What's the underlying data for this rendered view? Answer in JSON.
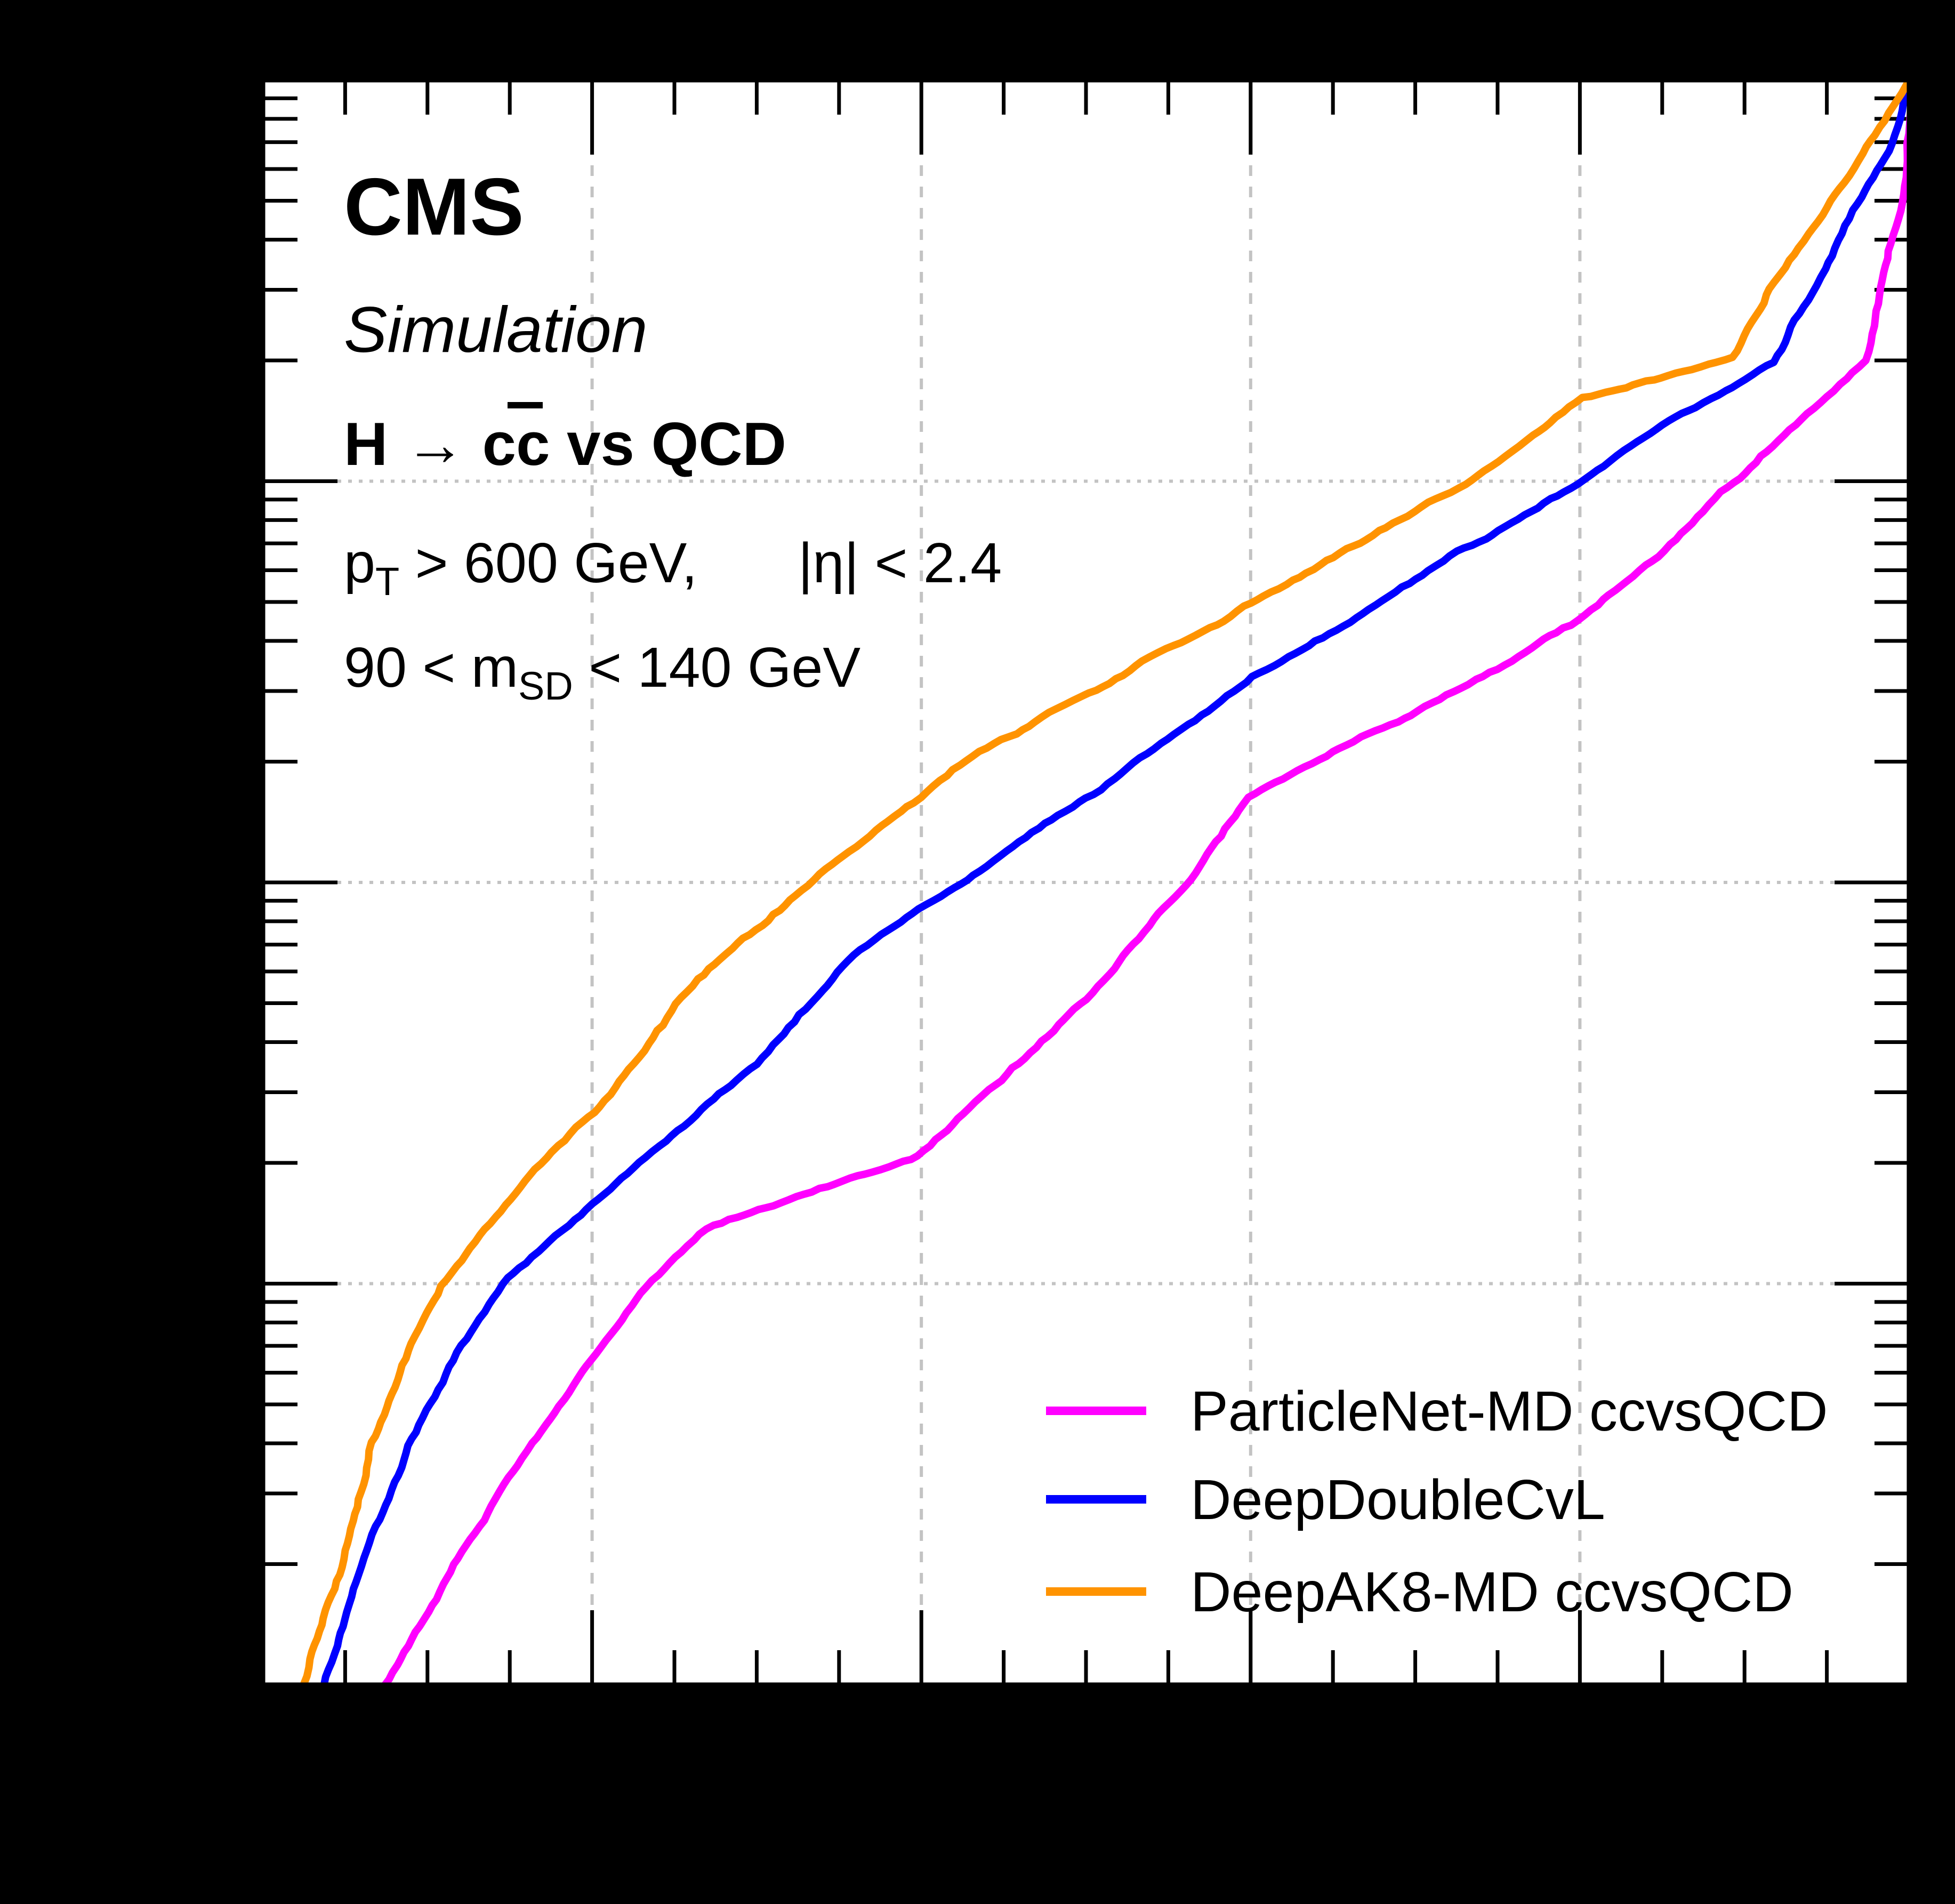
{
  "header": {
    "experiment": "CMS",
    "label": "Simulation",
    "process": {
      "h": "H ",
      "arrow": "→",
      "c": " c",
      "anti_c": "c",
      "rest": " vs QCD"
    },
    "cuts": {
      "pt_p": "p",
      "pt_sub": "T",
      "pt_rest": " > 600 GeV,",
      "eta": "|η| < 2.4",
      "msd_before": "90 < m",
      "msd_sub": "SD",
      "msd_after": " < 140 GeV"
    }
  },
  "legend": {
    "position": "bottom-right",
    "items": [
      {
        "label": "ParticleNet-MD ccvsQCD",
        "color": "#ff00ff"
      },
      {
        "label": "DeepDoubleCvL",
        "color": "#0000ff"
      },
      {
        "label": "DeepAK8-MD ccvsQCD",
        "color": "#ff9300"
      }
    ]
  },
  "chart_data": {
    "type": "line",
    "title": "CMS Simulation",
    "subtitle": "H → cc̄ vs QCD",
    "grid": true,
    "x_axis": {
      "scale": "linear",
      "min": 0,
      "max": 1,
      "major_ticks": [
        0.2,
        0.4,
        0.6,
        0.8
      ],
      "minor_step": 0.05,
      "gridlines": [
        0.2,
        0.4,
        0.6,
        0.8
      ]
    },
    "y_axis": {
      "scale": "log",
      "min": 0.0001,
      "max": 1,
      "major_ticks": [
        0.1,
        0.01,
        0.001
      ],
      "gridlines": [
        0.1,
        0.01,
        0.001
      ]
    },
    "series": [
      {
        "id": "particlenet-md",
        "name": "ParticleNet-MD ccvsQCD",
        "color": "#ff00ff",
        "points": [
          [
            0.074,
            0.0001
          ],
          [
            0.118,
            0.0002
          ],
          [
            0.164,
            0.0004
          ],
          [
            0.2,
            0.00065
          ],
          [
            0.238,
            0.001
          ],
          [
            0.271,
            0.00135
          ],
          [
            0.34,
            0.00175
          ],
          [
            0.4,
            0.0021
          ],
          [
            0.5,
            0.0052
          ],
          [
            0.565,
            0.01
          ],
          [
            0.6,
            0.016
          ],
          [
            0.7,
            0.027
          ],
          [
            0.8,
            0.045
          ],
          [
            0.85,
            0.066
          ],
          [
            0.894,
            0.1
          ],
          [
            0.94,
            0.15
          ],
          [
            0.974,
            0.2
          ],
          [
            0.985,
            0.3
          ],
          [
            0.995,
            0.5
          ],
          [
            1.0,
            1.0
          ]
        ]
      },
      {
        "id": "deepdoublecvl",
        "name": "DeepDoubleCvL",
        "color": "#0000ff",
        "points": [
          [
            0.038,
            0.0001
          ],
          [
            0.061,
            0.0002
          ],
          [
            0.09,
            0.0004
          ],
          [
            0.12,
            0.00068
          ],
          [
            0.147,
            0.001
          ],
          [
            0.22,
            0.0018
          ],
          [
            0.3,
            0.0035
          ],
          [
            0.359,
            0.0066
          ],
          [
            0.428,
            0.01
          ],
          [
            0.52,
            0.0185
          ],
          [
            0.6,
            0.032
          ],
          [
            0.7,
            0.058
          ],
          [
            0.801,
            0.1
          ],
          [
            0.86,
            0.145
          ],
          [
            0.918,
            0.2
          ],
          [
            0.941,
            0.3
          ],
          [
            0.967,
            0.5
          ],
          [
            0.988,
            0.7
          ],
          [
            1.0,
            1.0
          ]
        ]
      },
      {
        "id": "deepak8-md",
        "name": "DeepAK8-MD ccvsQCD",
        "color": "#ff9300",
        "points": [
          [
            0.025,
            0.0001
          ],
          [
            0.048,
            0.0002
          ],
          [
            0.065,
            0.0004
          ],
          [
            0.088,
            0.00072
          ],
          [
            0.107,
            0.001
          ],
          [
            0.16,
            0.0019
          ],
          [
            0.21,
            0.003
          ],
          [
            0.262,
            0.0058
          ],
          [
            0.331,
            0.01
          ],
          [
            0.42,
            0.019
          ],
          [
            0.504,
            0.03
          ],
          [
            0.57,
            0.042
          ],
          [
            0.629,
            0.058
          ],
          [
            0.68,
            0.076
          ],
          [
            0.731,
            0.1
          ],
          [
            0.8,
            0.16
          ],
          [
            0.85,
            0.178
          ],
          [
            0.892,
            0.2
          ],
          [
            0.914,
            0.3
          ],
          [
            0.951,
            0.5
          ],
          [
            0.975,
            0.7
          ],
          [
            1.0,
            1.0
          ]
        ]
      }
    ]
  }
}
